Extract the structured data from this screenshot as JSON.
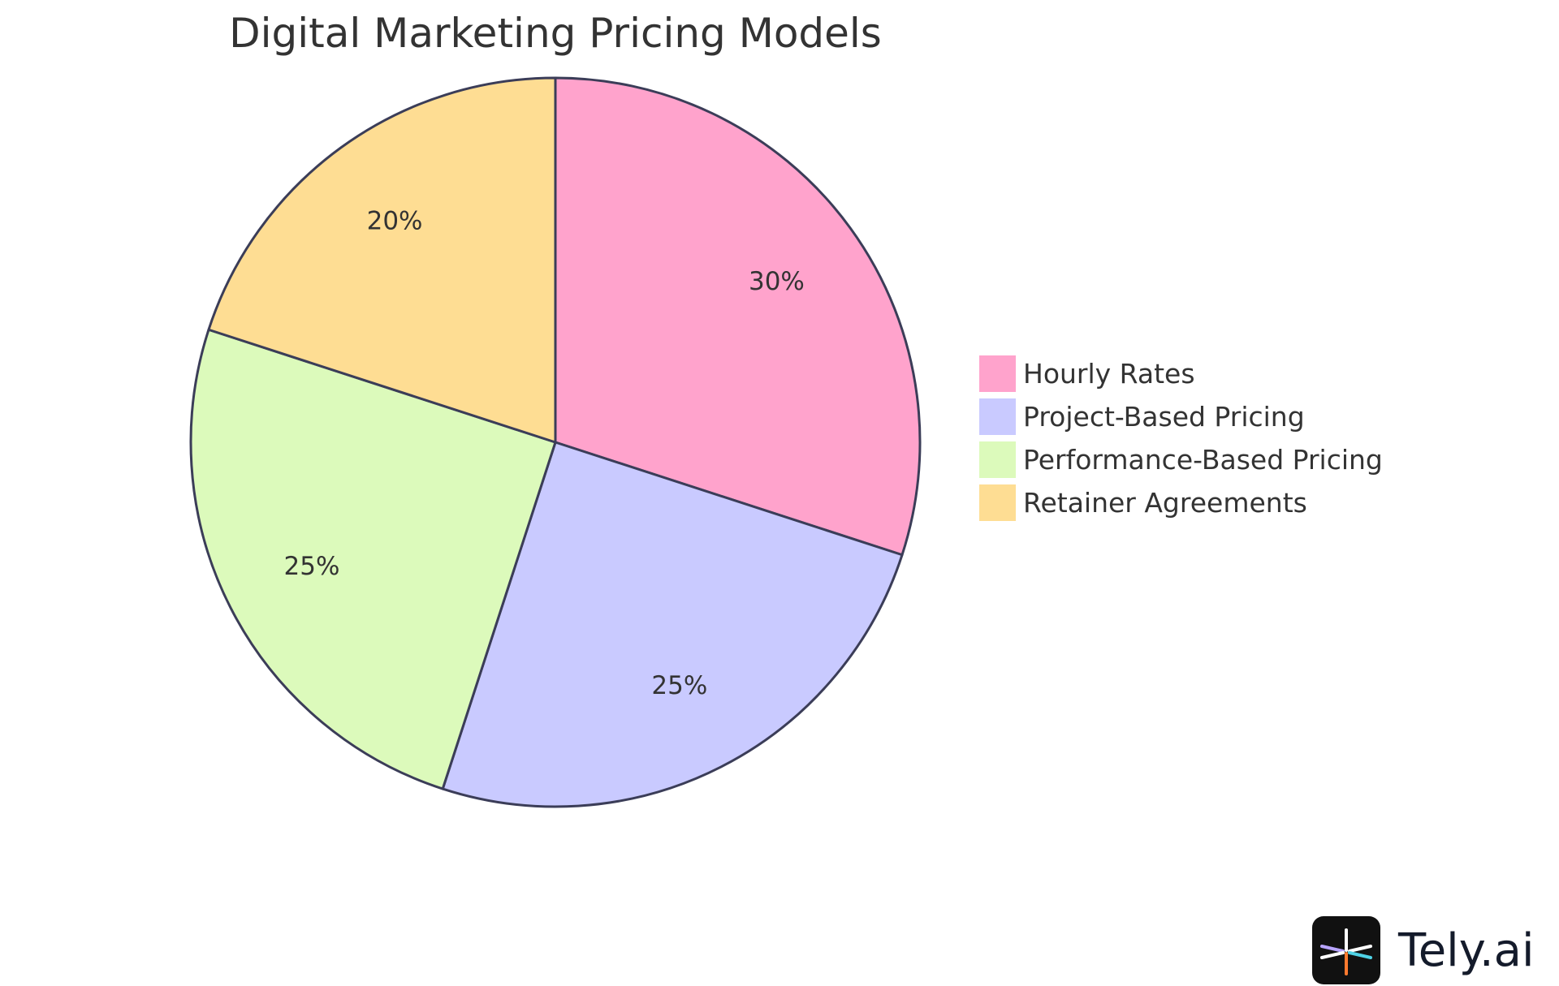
{
  "chart_data": {
    "type": "pie",
    "title": "Digital Marketing Pricing Models",
    "slices": [
      {
        "label": "Hourly Rates",
        "value": 30,
        "display": "30%",
        "color": "#ffa3cc"
      },
      {
        "label": "Project-Based Pricing",
        "value": 25,
        "display": "25%",
        "color": "#c9caff"
      },
      {
        "label": "Performance-Based Pricing",
        "value": 25,
        "display": "25%",
        "color": "#dcfabb"
      },
      {
        "label": "Retainer Agreements",
        "value": 20,
        "display": "20%",
        "color": "#fedd93"
      }
    ],
    "start_angle_deg": 0,
    "direction": "clockwise",
    "legend_position": "right",
    "stroke_color": "#3b3d58"
  },
  "brand": {
    "name": "Tely.ai",
    "icon": "tely-logo-icon",
    "icon_bg": "#111111",
    "icon_colors": [
      "#ffffff",
      "#b8a4ff",
      "#4fd2e6",
      "#ff7a2f"
    ]
  }
}
